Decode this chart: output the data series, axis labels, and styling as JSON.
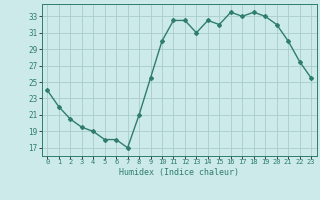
{
  "x": [
    0,
    1,
    2,
    3,
    4,
    5,
    6,
    7,
    8,
    9,
    10,
    11,
    12,
    13,
    14,
    15,
    16,
    17,
    18,
    19,
    20,
    21,
    22,
    23
  ],
  "y": [
    24.0,
    22.0,
    20.5,
    19.5,
    19.0,
    18.0,
    18.0,
    17.0,
    21.0,
    25.5,
    30.0,
    32.5,
    32.5,
    31.0,
    32.5,
    32.0,
    33.5,
    33.0,
    33.5,
    33.0,
    32.0,
    30.0,
    27.5,
    25.5
  ],
  "line_color": "#2e7d6e",
  "bg_color": "#cceaea",
  "grid_color": "#aacccc",
  "xlabel": "Humidex (Indice chaleur)",
  "yticks": [
    17,
    19,
    21,
    23,
    25,
    27,
    29,
    31,
    33
  ],
  "xticks": [
    0,
    1,
    2,
    3,
    4,
    5,
    6,
    7,
    8,
    9,
    10,
    11,
    12,
    13,
    14,
    15,
    16,
    17,
    18,
    19,
    20,
    21,
    22,
    23
  ],
  "ylim": [
    16.0,
    34.5
  ],
  "xlim": [
    -0.5,
    23.5
  ]
}
